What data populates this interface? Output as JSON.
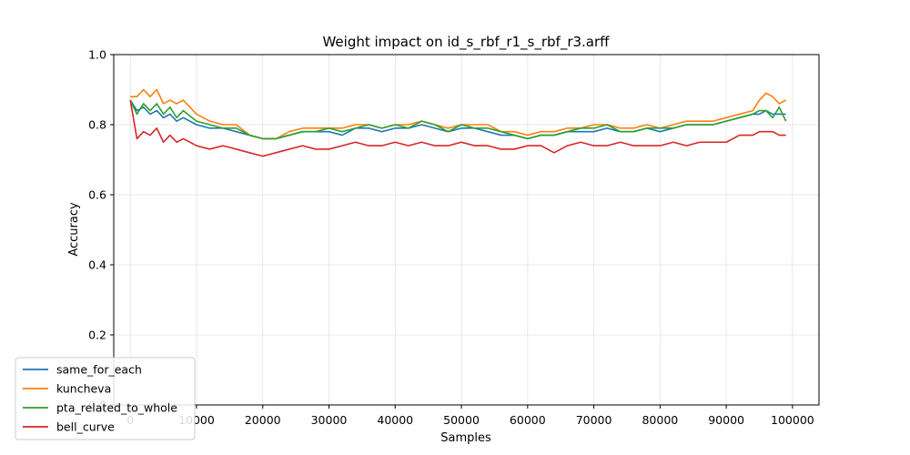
{
  "chart_data": {
    "type": "line",
    "title": "Weight impact on id_s_rbf_r1_s_rbf_r3.arff",
    "xlabel": "Samples",
    "ylabel": "Accuracy",
    "xlim": [
      -2500,
      104000
    ],
    "ylim": [
      0.0,
      1.0
    ],
    "x_ticks": [
      0,
      10000,
      20000,
      30000,
      40000,
      50000,
      60000,
      70000,
      80000,
      90000,
      100000
    ],
    "y_ticks": [
      0.0,
      0.2,
      0.4,
      0.6,
      0.8,
      1.0
    ],
    "x_tick_labels": [
      "0",
      "10000",
      "20000",
      "30000",
      "40000",
      "50000",
      "60000",
      "70000",
      "80000",
      "90000",
      "100000"
    ],
    "y_tick_labels": [
      "0.0",
      "0.2",
      "0.4",
      "0.6",
      "0.8",
      "1.0"
    ],
    "grid": true,
    "legend_position": "lower-left",
    "series": [
      {
        "name": "same_for_each",
        "color": "#1f77b4",
        "x": [
          0,
          1000,
          2000,
          3000,
          4000,
          5000,
          6000,
          7000,
          8000,
          10000,
          12000,
          14000,
          16000,
          18000,
          20000,
          22000,
          24000,
          26000,
          28000,
          30000,
          32000,
          34000,
          36000,
          38000,
          40000,
          42000,
          44000,
          46000,
          48000,
          50000,
          52000,
          54000,
          56000,
          58000,
          60000,
          62000,
          64000,
          66000,
          68000,
          70000,
          72000,
          74000,
          76000,
          78000,
          80000,
          82000,
          84000,
          86000,
          88000,
          90000,
          92000,
          94000,
          95000,
          96000,
          97000,
          98000,
          99000
        ],
        "y": [
          0.87,
          0.84,
          0.85,
          0.83,
          0.84,
          0.82,
          0.83,
          0.81,
          0.82,
          0.8,
          0.79,
          0.79,
          0.78,
          0.77,
          0.76,
          0.76,
          0.77,
          0.78,
          0.78,
          0.78,
          0.77,
          0.79,
          0.79,
          0.78,
          0.79,
          0.79,
          0.8,
          0.79,
          0.78,
          0.79,
          0.79,
          0.78,
          0.77,
          0.77,
          0.76,
          0.77,
          0.77,
          0.78,
          0.78,
          0.78,
          0.79,
          0.78,
          0.78,
          0.79,
          0.78,
          0.79,
          0.8,
          0.8,
          0.8,
          0.81,
          0.82,
          0.83,
          0.83,
          0.84,
          0.83,
          0.83,
          0.83
        ]
      },
      {
        "name": "kuncheva",
        "color": "#ff7f0e",
        "x": [
          0,
          1000,
          2000,
          3000,
          4000,
          5000,
          6000,
          7000,
          8000,
          10000,
          12000,
          14000,
          16000,
          18000,
          20000,
          22000,
          24000,
          26000,
          28000,
          30000,
          32000,
          34000,
          36000,
          38000,
          40000,
          42000,
          44000,
          46000,
          48000,
          50000,
          52000,
          54000,
          56000,
          58000,
          60000,
          62000,
          64000,
          66000,
          68000,
          70000,
          72000,
          74000,
          76000,
          78000,
          80000,
          82000,
          84000,
          86000,
          88000,
          90000,
          92000,
          94000,
          95000,
          96000,
          97000,
          98000,
          99000
        ],
        "y": [
          0.88,
          0.88,
          0.9,
          0.88,
          0.9,
          0.86,
          0.87,
          0.86,
          0.87,
          0.83,
          0.81,
          0.8,
          0.8,
          0.77,
          0.76,
          0.76,
          0.78,
          0.79,
          0.79,
          0.79,
          0.79,
          0.8,
          0.8,
          0.79,
          0.8,
          0.8,
          0.81,
          0.8,
          0.79,
          0.8,
          0.8,
          0.8,
          0.78,
          0.78,
          0.77,
          0.78,
          0.78,
          0.79,
          0.79,
          0.8,
          0.8,
          0.79,
          0.79,
          0.8,
          0.79,
          0.8,
          0.81,
          0.81,
          0.81,
          0.82,
          0.83,
          0.84,
          0.87,
          0.89,
          0.88,
          0.86,
          0.87
        ]
      },
      {
        "name": "pta_related_to_whole",
        "color": "#2ca02c",
        "x": [
          0,
          1000,
          2000,
          3000,
          4000,
          5000,
          6000,
          7000,
          8000,
          10000,
          12000,
          14000,
          16000,
          18000,
          20000,
          22000,
          24000,
          26000,
          28000,
          30000,
          32000,
          34000,
          36000,
          38000,
          40000,
          42000,
          44000,
          46000,
          48000,
          50000,
          52000,
          54000,
          56000,
          58000,
          60000,
          62000,
          64000,
          66000,
          68000,
          70000,
          72000,
          74000,
          76000,
          78000,
          80000,
          82000,
          84000,
          86000,
          88000,
          90000,
          92000,
          94000,
          95000,
          96000,
          97000,
          98000,
          99000
        ],
        "y": [
          0.87,
          0.83,
          0.86,
          0.84,
          0.86,
          0.83,
          0.85,
          0.82,
          0.84,
          0.81,
          0.8,
          0.79,
          0.79,
          0.77,
          0.76,
          0.76,
          0.77,
          0.78,
          0.78,
          0.79,
          0.78,
          0.79,
          0.8,
          0.79,
          0.8,
          0.79,
          0.81,
          0.8,
          0.78,
          0.8,
          0.79,
          0.79,
          0.78,
          0.77,
          0.76,
          0.77,
          0.77,
          0.78,
          0.79,
          0.79,
          0.8,
          0.78,
          0.78,
          0.79,
          0.79,
          0.79,
          0.8,
          0.8,
          0.8,
          0.81,
          0.82,
          0.83,
          0.84,
          0.84,
          0.82,
          0.85,
          0.81
        ]
      },
      {
        "name": "bell_curve",
        "color": "#d62728",
        "x": [
          0,
          1000,
          2000,
          3000,
          4000,
          5000,
          6000,
          7000,
          8000,
          10000,
          12000,
          14000,
          16000,
          18000,
          20000,
          22000,
          24000,
          26000,
          28000,
          30000,
          32000,
          34000,
          36000,
          38000,
          40000,
          42000,
          44000,
          46000,
          48000,
          50000,
          52000,
          54000,
          56000,
          58000,
          60000,
          62000,
          64000,
          66000,
          68000,
          70000,
          72000,
          74000,
          76000,
          78000,
          80000,
          82000,
          84000,
          86000,
          88000,
          90000,
          92000,
          94000,
          95000,
          96000,
          97000,
          98000,
          99000
        ],
        "y": [
          0.87,
          0.76,
          0.78,
          0.77,
          0.79,
          0.75,
          0.77,
          0.75,
          0.76,
          0.74,
          0.73,
          0.74,
          0.73,
          0.72,
          0.71,
          0.72,
          0.73,
          0.74,
          0.73,
          0.73,
          0.74,
          0.75,
          0.74,
          0.74,
          0.75,
          0.74,
          0.75,
          0.74,
          0.74,
          0.75,
          0.74,
          0.74,
          0.73,
          0.73,
          0.74,
          0.74,
          0.72,
          0.74,
          0.75,
          0.74,
          0.74,
          0.75,
          0.74,
          0.74,
          0.74,
          0.75,
          0.74,
          0.75,
          0.75,
          0.75,
          0.77,
          0.77,
          0.78,
          0.78,
          0.78,
          0.77,
          0.77
        ]
      }
    ]
  }
}
